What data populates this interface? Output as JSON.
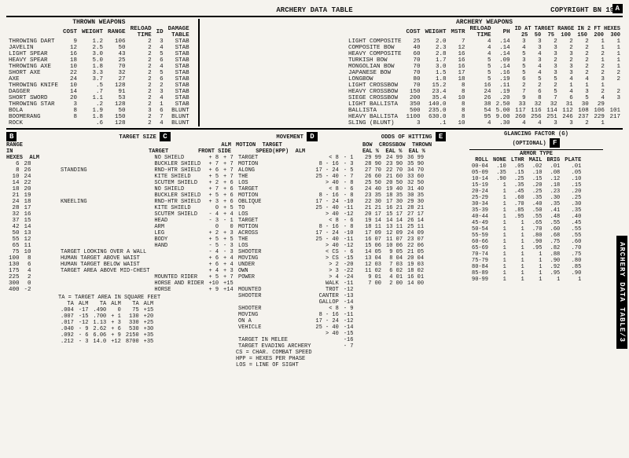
{
  "header": {
    "title": "ARCHERY DATA TABLE",
    "copyright": "COPYRIGHT BN 1984"
  },
  "thrown": {
    "label": "THROWN WEAPONS",
    "cols": [
      "COST",
      "WEIGHT",
      "RANGE",
      "RELOAD TIME",
      "ID",
      "DAMAGE TABLE"
    ],
    "rows": [
      [
        "THROWING DART",
        9,
        "1.2",
        106,
        2,
        3,
        "STAB"
      ],
      [
        "JAVELIN",
        12,
        "2.5",
        50,
        2,
        4,
        "STAB"
      ],
      [
        "LIGHT SPEAR",
        16,
        "3.0",
        43,
        2,
        5,
        "STAB"
      ],
      [
        "HEAVY SPEAR",
        18,
        "5.0",
        25,
        2,
        6,
        "STAB"
      ],
      [
        "THROWING AXE",
        10,
        "1.8",
        70,
        2,
        4,
        "STAB"
      ],
      [
        "SHORT AXE",
        22,
        "3.3",
        32,
        2,
        5,
        "STAB"
      ],
      [
        "AXE",
        24,
        "3.7",
        27,
        2,
        6,
        "STAB"
      ],
      [
        "THROWING KNIFE",
        10,
        ".5",
        128,
        2,
        2,
        "STAB"
      ],
      [
        "DAGGER",
        14,
        ".7",
        91,
        2,
        3,
        "STAB"
      ],
      [
        "SHORT SWORD",
        20,
        "1.1",
        53,
        2,
        4,
        "STAB"
      ],
      [
        "THROWING STAR",
        3,
        ".2",
        128,
        2,
        1,
        "STAB"
      ],
      [
        "BOLA",
        8,
        "1.9",
        50,
        3,
        6,
        "BLUNT"
      ],
      [
        "BOOMERANG",
        8,
        "1.8",
        150,
        2,
        7,
        "BLUNT"
      ],
      [
        "ROCK",
        "",
        ".6",
        128,
        2,
        4,
        "BLUNT"
      ]
    ]
  },
  "archery": {
    "label": "ARCHERY WEAPONS",
    "cols": [
      "COST",
      "WEIGHT",
      "MSTR",
      "RELOAD TIME",
      "PH"
    ],
    "idcols": [
      "25",
      "50",
      "75",
      "100",
      "150",
      "200",
      "300"
    ],
    "rows": [
      [
        "LIGHT COMPOSITE",
        25,
        "2.0",
        7,
        4,
        ".14",
        3,
        3,
        2,
        2,
        2,
        1,
        1
      ],
      [
        "COMPOSITE BOW",
        40,
        "2.3",
        12,
        4,
        ".14",
        4,
        3,
        3,
        2,
        2,
        1,
        1
      ],
      [
        "HEAVY COMPOSITE",
        60,
        "2.8",
        16,
        4,
        ".14",
        5,
        4,
        3,
        3,
        2,
        2,
        1
      ],
      [
        "TURKISH BOW",
        70,
        "1.7",
        16,
        5,
        ".09",
        3,
        3,
        2,
        2,
        2,
        1,
        1
      ],
      [
        "MONGOLIAN BOW",
        70,
        "3.0",
        16,
        5,
        ".14",
        5,
        4,
        3,
        3,
        2,
        2,
        1
      ],
      [
        "JAPANESE BOW",
        70,
        "1.5",
        17,
        5,
        ".16",
        5,
        4,
        3,
        3,
        2,
        2,
        2
      ],
      [
        "LONGBOW",
        80,
        "1.8",
        18,
        5,
        ".19",
        6,
        5,
        5,
        4,
        4,
        3,
        2
      ],
      [
        "LIGHT CROSSBOW",
        70,
        "15.2",
        8,
        16,
        ".11",
        2,
        2,
        2,
        1,
        1,
        1,
        ""
      ],
      [
        "HEAVY CROSSBOW",
        150,
        "23.4",
        8,
        24,
        ".19",
        7,
        6,
        5,
        4,
        3,
        2,
        2
      ],
      [
        "SIEGE CROSSBOW",
        200,
        "35.4",
        10,
        26,
        ".20",
        9,
        8,
        7,
        6,
        5,
        4,
        3
      ],
      [
        "LIGHT BALLISTA",
        350,
        "140.0",
        8,
        38,
        "2.50",
        33,
        32,
        32,
        31,
        30,
        29,
        ""
      ],
      [
        "BALLISTA",
        500,
        "235.0",
        8,
        54,
        "5.00",
        117,
        116,
        114,
        112,
        108,
        106,
        101
      ],
      [
        "HEAVY BALLISTA",
        1100,
        "630.0",
        8,
        95,
        "9.00",
        260,
        256,
        251,
        246,
        237,
        229,
        217
      ],
      [
        "SLING (BLUNT)",
        3,
        ".1",
        10,
        4,
        ".30",
        4,
        4,
        3,
        3,
        2,
        1,
        ""
      ]
    ]
  },
  "panels": {
    "B": {
      "label": "B",
      "title": "RANGE IN HEXES / ALM",
      "rows": [
        [
          "6",
          "28"
        ],
        [
          "8",
          "26"
        ],
        [
          "10",
          "24"
        ],
        [
          "14",
          "22"
        ],
        [
          "18",
          "20"
        ],
        [
          "21",
          "19"
        ],
        [
          "24",
          "18"
        ],
        [
          "28",
          "17"
        ],
        [
          "32",
          "16"
        ],
        [
          "37",
          "15"
        ],
        [
          "42",
          "14"
        ],
        [
          "50",
          "13"
        ],
        [
          "55",
          "12"
        ],
        [
          "65",
          "11"
        ],
        [
          "75",
          "10"
        ],
        [
          "100",
          "8"
        ],
        [
          "130",
          "6"
        ],
        [
          "175",
          "4"
        ],
        [
          "225",
          "2"
        ],
        [
          "300",
          "0"
        ],
        [
          "400",
          "-2"
        ]
      ]
    },
    "C": {
      "label": "C",
      "title": "TARGET SIZE",
      "rows": [
        [
          "",
          "NO SHIELD",
          "+ 8",
          "+ 7"
        ],
        [
          "",
          "BUCKLER SHIELD",
          "+ 7",
          "+ 7"
        ],
        [
          "STANDING",
          "RND-HTR SHIELD",
          "+ 6",
          "+ 7"
        ],
        [
          "",
          "KITE SHIELD",
          "+ 5",
          "+ 7"
        ],
        [
          "",
          "SCUTEM SHIELD",
          "+ 2",
          "+ 6"
        ],
        [
          "",
          "NO SHIELD",
          "+ 7",
          "+ 6"
        ],
        [
          "",
          "BUCKLER SHIELD",
          "+ 5",
          "+ 6"
        ],
        [
          "KNEELING",
          "RND-HTR SHIELD",
          "+ 3",
          "+ 6"
        ],
        [
          "",
          "KITE SHIELD",
          "0",
          "+ 5"
        ],
        [
          "",
          "SCUTEM SHIELD",
          "- 4",
          "+ 4"
        ],
        [
          "",
          "HEAD",
          "- 3",
          "- 1"
        ],
        [
          "",
          "ARM",
          "0",
          "0"
        ],
        [
          "",
          "LEG",
          "+ 2",
          "+ 3"
        ],
        [
          "",
          "BODY",
          "+ 5",
          "+ 5"
        ],
        [
          "",
          "HAND",
          "- 5",
          "- 3"
        ],
        [
          "TARGET LOOKING OVER A WALL",
          "",
          "- 4",
          "- 3"
        ],
        [
          "HUMAN TARGET ABOVE WAIST",
          "",
          "+ 6",
          "+ 4"
        ],
        [
          "HUMAN TARGET BELOW WAIST",
          "",
          "+ 6",
          "+ 4"
        ],
        [
          "TARGET AREA ABOVE MID-CHEST",
          "",
          "+ 4",
          "+ 3"
        ],
        [
          "",
          "MOUNTED RIDER",
          "+ 5",
          "+ 7"
        ],
        [
          "",
          "HORSE AND RIDER",
          "+10",
          "+15"
        ],
        [
          "",
          "HORSE",
          "+ 9",
          "+14"
        ]
      ],
      "footer": "TA = TARGET AREA IN SQUARE FEET",
      "ta_rows": [
        [
          "TA",
          "ALM",
          "TA",
          "ALM",
          "TA",
          "ALM"
        ],
        [
          ".004",
          "-17",
          ".490",
          "0",
          "75",
          "+15"
        ],
        [
          ".007",
          "-15",
          ".700",
          "+ 1",
          "130",
          "+20"
        ],
        [
          ".017",
          "-12",
          "1.13",
          "+ 3",
          "330",
          "+25"
        ],
        [
          ".040",
          "- 9",
          "2.62",
          "+ 6",
          "530",
          "+30"
        ],
        [
          ".092",
          "- 6",
          "6.06",
          "+ 9",
          "2150",
          "+35"
        ],
        [
          ".212",
          "- 3",
          "14.0",
          "+12",
          "8700",
          "+35"
        ]
      ]
    },
    "D": {
      "label": "D",
      "title": "MOVEMENT",
      "rows": [
        [
          "TARGET",
          "<  8",
          "- 1"
        ],
        [
          "MOTION",
          "8 - 16",
          "- 3"
        ],
        [
          "ALONG",
          "17 - 24",
          "- 5"
        ],
        [
          "THE",
          "25 - 40",
          "- 7"
        ],
        [
          "LOS",
          "> 40",
          "- 8"
        ],
        [
          "TARGET",
          "<  8",
          "- 6"
        ],
        [
          "MOTION",
          "8 - 16",
          "- 8"
        ],
        [
          "OBLIQUE",
          "17 - 24",
          "-10"
        ],
        [
          "TO",
          "25 - 40",
          "-11"
        ],
        [
          "LOS",
          "> 40",
          "-12"
        ],
        [
          "TARGET",
          "<  8",
          "- 6"
        ],
        [
          "MOTION",
          "8 - 16",
          "- 8"
        ],
        [
          "ACROSS",
          "17 - 24",
          "-10"
        ],
        [
          "THE",
          "25 - 40",
          "-11"
        ],
        [
          "LOS",
          "> 40",
          "-12"
        ],
        [
          "SHOOTER",
          "< CS",
          "- 6"
        ],
        [
          "MOVING",
          "> CS",
          "-15"
        ],
        [
          "UNDER",
          "> 2",
          "-20"
        ],
        [
          "OWN",
          "> 3",
          "-22"
        ],
        [
          "POWER",
          "> 4",
          "-24"
        ],
        [
          "",
          "WALK",
          "-11"
        ],
        [
          "MOUNTED",
          "TROT",
          "-12"
        ],
        [
          "SHOOTER",
          "CANTER",
          "-13"
        ],
        [
          "",
          "GALLOP",
          "-14"
        ],
        [
          "SHOOTER",
          "<  8",
          "- 9"
        ],
        [
          "MOVING",
          "8 - 16",
          "-11"
        ],
        [
          "ON A",
          "17 - 24",
          "-12"
        ],
        [
          "VEHICLE",
          "25 - 40",
          "-14"
        ],
        [
          "",
          "> 40",
          "-15"
        ],
        [
          "TARGET IN MELEE",
          "",
          "-16"
        ],
        [
          "TARGET EVADING ARCHERY",
          "",
          "- 7"
        ]
      ],
      "footer": [
        "CS = CHAR. COMBAT SPEED",
        "HPP = HEXES PER PHASE",
        "LOS = LINE OF SIGHT"
      ]
    },
    "E": {
      "label": "E",
      "title": "ODDS OF HITTING",
      "cols": [
        "BOW EAL",
        "%",
        "CROSSBOW EAL",
        "%",
        "THROWN EAL",
        "%"
      ],
      "rows": [
        [
          "29 99",
          "",
          "24 99",
          "",
          "36 99"
        ],
        [
          "28 90",
          "",
          "23 90",
          "",
          "35 90"
        ],
        [
          "27 70",
          "",
          "22 70",
          "",
          "34 70"
        ],
        [
          "26 60",
          "",
          "21 60",
          "",
          "33 60"
        ],
        [
          "25 50",
          "",
          "20 50",
          "",
          "32 50"
        ],
        [
          "24 40",
          "",
          "19 40",
          "",
          "31 40"
        ],
        [
          "23 35",
          "",
          "18 35",
          "",
          "30 35"
        ],
        [
          "22 30",
          "",
          "17 30",
          "",
          "29 30"
        ],
        [
          "21 21",
          "",
          "16 21",
          "",
          "28 21"
        ],
        [
          "20 17",
          "",
          "15 17",
          "",
          "27 17"
        ],
        [
          "19 14",
          "",
          "14 14",
          "",
          "26 14"
        ],
        [
          "18 11",
          "",
          "13 11",
          "",
          "25 11"
        ],
        [
          "17 09",
          "",
          "12 09",
          "",
          "24 09"
        ],
        [
          "16 07",
          "",
          "11 07",
          "",
          "23 07"
        ],
        [
          "15 06",
          "",
          "10 06",
          "",
          "22 06"
        ],
        [
          "14 05",
          "",
          "9 05",
          "",
          "21 05"
        ],
        [
          "13 04",
          "",
          "8 04",
          "",
          "20 04"
        ],
        [
          "12 03",
          "",
          "7 03",
          "",
          "19 03"
        ],
        [
          "11 02",
          "",
          "6 02",
          "",
          "18 02"
        ],
        [
          "9 01",
          "",
          "4 01",
          "",
          "16 01"
        ],
        [
          "7 00",
          "",
          "2 00",
          "",
          "14 00"
        ]
      ]
    },
    "F": {
      "label": "F",
      "title": "GLANCING FACTOR (G) (OPTIONAL)",
      "cols": [
        "ROLL",
        "NONE",
        "LTHR",
        "MAIL",
        "BRIG",
        "PLATE"
      ],
      "rows": [
        [
          "00-04",
          ".10",
          ".05",
          ".02",
          ".01",
          ".01"
        ],
        [
          "05-09",
          ".35",
          ".15",
          ".10",
          ".08",
          ".05"
        ],
        [
          "10-14",
          ".90",
          ".25",
          ".15",
          ".12",
          ".10"
        ],
        [
          "15-19",
          "1",
          ".35",
          ".20",
          ".18",
          ".15"
        ],
        [
          "20-24",
          "1",
          ".45",
          ".25",
          ".23",
          ".20"
        ],
        [
          "25-29",
          "1",
          ".60",
          ".35",
          ".30",
          ".25"
        ],
        [
          "30-34",
          "1",
          ".70",
          ".40",
          ".35",
          ".30"
        ],
        [
          "35-39",
          "1",
          ".85",
          ".50",
          ".41",
          ".35"
        ],
        [
          "40-44",
          "1",
          ".95",
          ".55",
          ".48",
          ".40"
        ],
        [
          "45-49",
          "1",
          "1",
          ".65",
          ".55",
          ".45"
        ],
        [
          "50-54",
          "1",
          "1",
          ".70",
          ".60",
          ".55"
        ],
        [
          "55-59",
          "1",
          "1",
          ".80",
          ".68",
          ".55"
        ],
        [
          "60-66",
          "1",
          "1",
          ".90",
          ".75",
          ".60"
        ],
        [
          "65-69",
          "1",
          "1",
          ".95",
          ".82",
          ".70"
        ],
        [
          "70-74",
          "1",
          "1",
          "1",
          ".88",
          ".75"
        ],
        [
          "75-79",
          "1",
          "1",
          "1",
          ".90",
          ".80"
        ],
        [
          "80-84",
          "1",
          "1",
          "1",
          ".92",
          ".85"
        ],
        [
          "85-89",
          "1",
          "1",
          "1",
          ".95",
          ".90"
        ],
        [
          "90-99",
          "1",
          "1",
          "1",
          "1",
          "1"
        ]
      ]
    }
  },
  "sidetab": "ARCHERY DATA  TABLE/3"
}
